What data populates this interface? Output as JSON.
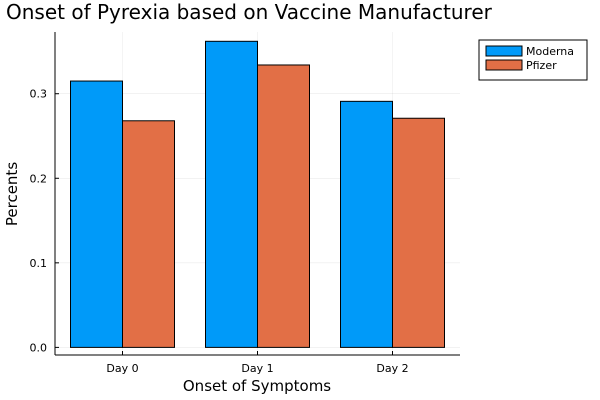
{
  "chart_data": {
    "type": "bar",
    "title": "Onset of Pyrexia based on Vaccine Manufacturer",
    "xlabel": "Onset of Symptoms",
    "ylabel": "Percents",
    "categories": [
      "Day 0",
      "Day 1",
      "Day 2"
    ],
    "series": [
      {
        "name": "Moderna",
        "color": "#009af9",
        "values": [
          0.315,
          0.362,
          0.291
        ]
      },
      {
        "name": "Pfizer",
        "color": "#e26f46",
        "values": [
          0.268,
          0.334,
          0.271
        ]
      }
    ],
    "ylim": [
      -0.009,
      0.373
    ],
    "yticks": [
      0.0,
      0.1,
      0.2,
      0.3
    ],
    "ytick_labels": [
      "0.0",
      "0.1",
      "0.2",
      "0.3"
    ],
    "grid": true,
    "legend_position": "top-right"
  }
}
